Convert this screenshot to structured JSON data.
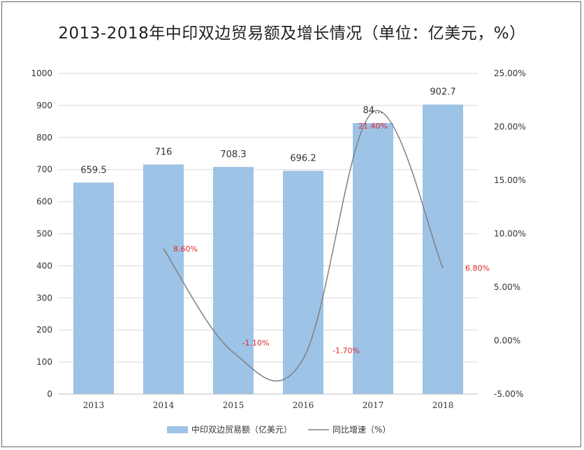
{
  "chart_data": {
    "type": "bar",
    "title": "2013-2018年中印双边贸易额及增长情况（单位：亿美元，%）",
    "categories": [
      "2013",
      "2014",
      "2015",
      "2016",
      "2017",
      "2018"
    ],
    "series": [
      {
        "name": "中印双边贸易额（亿美元）",
        "type": "bar",
        "axis": "left",
        "values": [
          659.5,
          716,
          708.3,
          696.2,
          845,
          902.7
        ],
        "labels": [
          "659.5",
          "716",
          "708.3",
          "696.2",
          "84...",
          "902.7"
        ],
        "color": "#9dc3e6"
      },
      {
        "name": "同比增速（%）",
        "type": "line",
        "axis": "right",
        "values": [
          null,
          8.6,
          -1.1,
          -1.7,
          21.4,
          6.8
        ],
        "labels": [
          "",
          "8.60%",
          "-1.10%",
          "-1.70%",
          "21.40%",
          "6.80%"
        ],
        "color": "#808080",
        "label_color": "#e0262b"
      }
    ],
    "y_left": {
      "min": 0,
      "max": 1000,
      "step": 100,
      "ticks": [
        "0",
        "100",
        "200",
        "300",
        "400",
        "500",
        "600",
        "700",
        "800",
        "900",
        "1000"
      ]
    },
    "y_right": {
      "min": -5,
      "max": 25,
      "step": 5,
      "ticks": [
        "-5.00%",
        "0.00%",
        "5.00%",
        "10.00%",
        "15.00%",
        "20.00%",
        "25.00%"
      ]
    },
    "grid": true,
    "legend_position": "bottom"
  }
}
